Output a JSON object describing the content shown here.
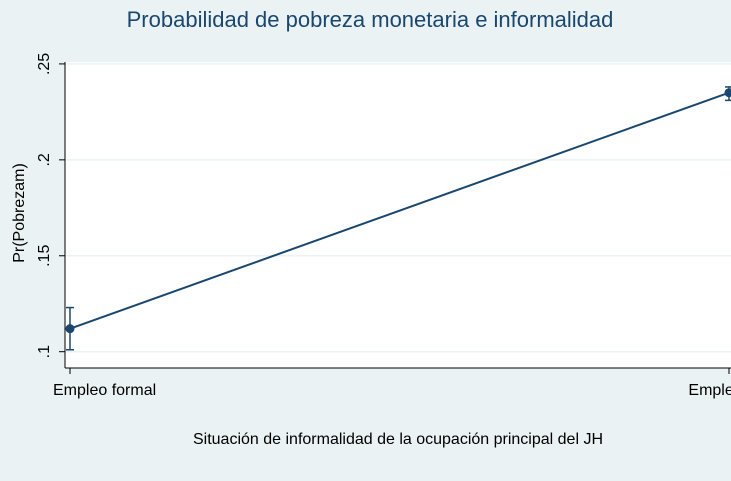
{
  "chart_data": {
    "type": "line",
    "title": "Probabilidad de pobreza monetaria e informalidad",
    "x_label": "Situación de informalidad de la ocupación principal del JH",
    "y_label": "Pr(Pobrezam)",
    "categories": [
      "Empleo formal",
      "Empleo informal"
    ],
    "series": [
      {
        "color": "#1a476f",
        "values": [
          0.112,
          0.235
        ],
        "ci_low": [
          0.101,
          0.231
        ],
        "ci_high": [
          0.123,
          0.238
        ]
      }
    ],
    "ylim": [
      0.0915,
      0.251
    ],
    "yticks": [
      {
        "value": 0.1,
        "label": ".1"
      },
      {
        "value": 0.15,
        "label": ".15"
      },
      {
        "value": 0.2,
        "label": ".2"
      },
      {
        "value": 0.25,
        "label": ".25"
      }
    ],
    "grid": true
  }
}
